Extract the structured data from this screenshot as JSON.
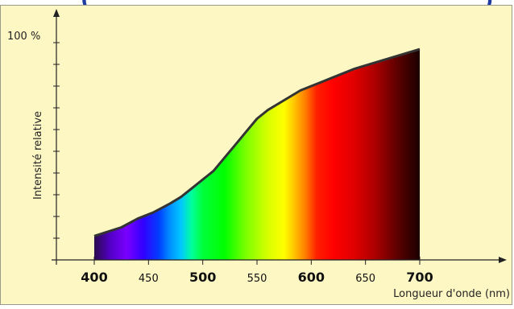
{
  "chart_data": {
    "type": "area",
    "title_fragment": "(                                                      )",
    "ylabel": "Intensité relative",
    "xlabel": "Longueur d'onde (nm)",
    "y_top_label": "100 %",
    "xlim": [
      400,
      700
    ],
    "ylim": [
      0,
      100
    ],
    "x_ticks": [
      {
        "value": 400,
        "label": "400",
        "bold": true
      },
      {
        "value": 450,
        "label": "450",
        "bold": false
      },
      {
        "value": 500,
        "label": "500",
        "bold": true
      },
      {
        "value": 550,
        "label": "550",
        "bold": false
      },
      {
        "value": 600,
        "label": "600",
        "bold": true
      },
      {
        "value": 650,
        "label": "650",
        "bold": false
      },
      {
        "value": 700,
        "label": "700",
        "bold": true
      }
    ],
    "y_ticks": [
      0,
      10,
      20,
      30,
      40,
      50,
      60,
      70,
      80,
      90,
      100
    ],
    "x": [
      400,
      425,
      440,
      455,
      470,
      480,
      490,
      500,
      510,
      520,
      530,
      540,
      550,
      560,
      570,
      580,
      590,
      600,
      610,
      620,
      640,
      660,
      680,
      700
    ],
    "y": [
      11,
      15,
      19,
      22,
      26,
      29,
      33,
      37,
      41,
      47,
      53,
      59,
      65,
      69,
      72,
      75,
      78,
      80,
      82,
      84,
      88,
      91,
      94,
      97
    ],
    "gradient_stops": [
      {
        "nm": 400,
        "color": "#2a0b4a"
      },
      {
        "nm": 415,
        "color": "#5300c8"
      },
      {
        "nm": 430,
        "color": "#7a00ff"
      },
      {
        "nm": 445,
        "color": "#3200ff"
      },
      {
        "nm": 460,
        "color": "#0040ff"
      },
      {
        "nm": 470,
        "color": "#0090ff"
      },
      {
        "nm": 480,
        "color": "#00c8ff"
      },
      {
        "nm": 490,
        "color": "#00ff9a"
      },
      {
        "nm": 500,
        "color": "#00ff3a"
      },
      {
        "nm": 520,
        "color": "#00ff00"
      },
      {
        "nm": 540,
        "color": "#7dff00"
      },
      {
        "nm": 560,
        "color": "#d8ff00"
      },
      {
        "nm": 575,
        "color": "#ffff00"
      },
      {
        "nm": 585,
        "color": "#ffc000"
      },
      {
        "nm": 595,
        "color": "#ff7a00"
      },
      {
        "nm": 605,
        "color": "#ff2000"
      },
      {
        "nm": 620,
        "color": "#ff0000"
      },
      {
        "nm": 640,
        "color": "#e00000"
      },
      {
        "nm": 660,
        "color": "#a80000"
      },
      {
        "nm": 680,
        "color": "#5a0000"
      },
      {
        "nm": 700,
        "color": "#1a0000"
      }
    ],
    "outline_color": "#333333",
    "background": "#fdf7c4"
  }
}
